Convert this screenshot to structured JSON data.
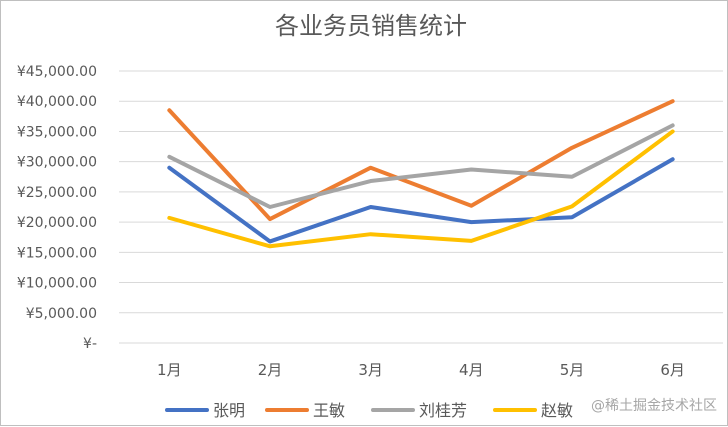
{
  "chart_data": {
    "type": "line",
    "title": "各业务员销售统计",
    "categories": [
      "1月",
      "2月",
      "3月",
      "4月",
      "5月",
      "6月"
    ],
    "y_ticks": [
      {
        "value": 0,
        "label": "¥-"
      },
      {
        "value": 5000,
        "label": "¥5,000.00"
      },
      {
        "value": 10000,
        "label": "¥10,000.00"
      },
      {
        "value": 15000,
        "label": "¥15,000.00"
      },
      {
        "value": 20000,
        "label": "¥20,000.00"
      },
      {
        "value": 25000,
        "label": "¥25,000.00"
      },
      {
        "value": 30000,
        "label": "¥30,000.00"
      },
      {
        "value": 35000,
        "label": "¥35,000.00"
      },
      {
        "value": 40000,
        "label": "¥40,000.00"
      },
      {
        "value": 45000,
        "label": "¥45,000.00"
      }
    ],
    "ylim": [
      0,
      45000
    ],
    "grid": true,
    "legend_position": "bottom",
    "series": [
      {
        "name": "张明",
        "color": "#4472c4",
        "values": [
          29000,
          16800,
          22500,
          20000,
          20800,
          30400
        ]
      },
      {
        "name": "王敏",
        "color": "#ed7d31",
        "values": [
          38500,
          20500,
          29000,
          22700,
          32300,
          40000
        ]
      },
      {
        "name": "刘桂芳",
        "color": "#a5a5a5",
        "values": [
          30800,
          22500,
          26800,
          28700,
          27500,
          36000
        ]
      },
      {
        "name": "赵敏",
        "color": "#ffc000",
        "values": [
          20700,
          16000,
          18000,
          16900,
          22600,
          35000
        ]
      }
    ]
  },
  "watermark": "@稀土掘金技术社区"
}
